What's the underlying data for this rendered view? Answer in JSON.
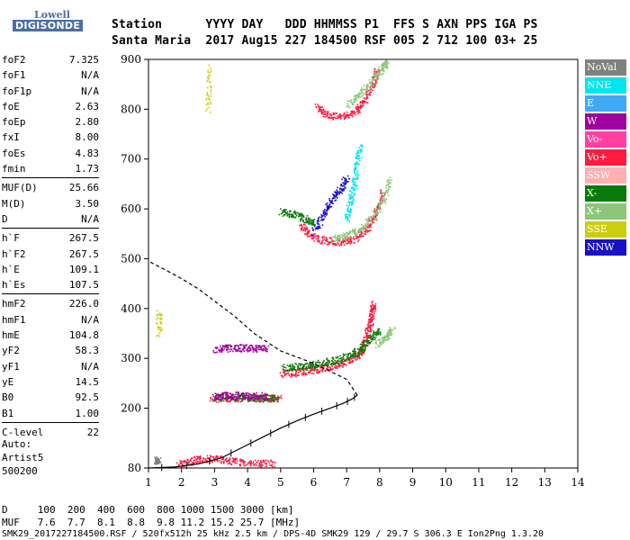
{
  "logo": {
    "line1": "Lowell",
    "line2": "DIGISONDE"
  },
  "header": {
    "line1": "Station      YYYY DAY   DDD HHMMSS P1  FFS S AXN PPS IGA PS",
    "line2": "Santa Maria  2017 Aug15 227 184500 RSF 005 2 712 100 03+ 25"
  },
  "params": [
    [
      [
        "foF2",
        "7.325"
      ],
      [
        "foF1",
        "N/A"
      ],
      [
        "foF1p",
        "N/A"
      ],
      [
        "foE",
        "2.63"
      ],
      [
        "foEp",
        "2.80"
      ],
      [
        "fxI",
        "8.00"
      ],
      [
        "foEs",
        "4.83"
      ],
      [
        "fmin",
        "1.73"
      ]
    ],
    [
      [
        "MUF(D)",
        "25.66"
      ],
      [
        "M(D)",
        "3.50"
      ],
      [
        "D",
        "N/A"
      ]
    ],
    [
      [
        "h`F",
        "267.5"
      ],
      [
        "h`F2",
        "267.5"
      ],
      [
        "h`E",
        "109.1"
      ],
      [
        "h`Es",
        "107.5"
      ]
    ],
    [
      [
        "hmF2",
        "226.0"
      ],
      [
        "hmF1",
        "N/A"
      ],
      [
        "hmE",
        "104.8"
      ],
      [
        "yF2",
        "58.3"
      ],
      [
        "yF1",
        "N/A"
      ],
      [
        "yE",
        "14.5"
      ],
      [
        "B0",
        "92.5"
      ],
      [
        "B1",
        "1.00"
      ]
    ],
    [
      [
        "C-level",
        "22"
      ]
    ]
  ],
  "auto": {
    "label": "Auto:",
    "name": "Artist5",
    "code": "500200"
  },
  "legend": [
    {
      "label": "NoVal",
      "color": "#808080"
    },
    {
      "label": "NNE",
      "color": "#00e5ee"
    },
    {
      "label": "E",
      "color": "#3fa9f5"
    },
    {
      "label": "W",
      "color": "#a0009f"
    },
    {
      "label": "Vo-",
      "color": "#ff40a0"
    },
    {
      "label": "Vo+",
      "color": "#ff1a40"
    },
    {
      "label": "SSW",
      "color": "#ffb0b0"
    },
    {
      "label": "X-",
      "color": "#0a7a0a"
    },
    {
      "label": "X+",
      "color": "#8cc67a"
    },
    {
      "label": "SSE",
      "color": "#cccc10"
    },
    {
      "label": "NNW",
      "color": "#1a10c8"
    }
  ],
  "footer": {
    "line1": "D     100  200  400  600  800 1000 1500 3000 [km]",
    "line2": "MUF   7.6  7.7  8.1  8.8  9.8 11.2 15.2 25.7 [MHz]",
    "line3": "SMK29_2017227184500.RSF / 520fx512h 25 kHz 2.5 km / DPS-4D SMK29 129 / 29.7 S 306.3 E Ion2Png 1.3.20"
  },
  "chart_data": {
    "type": "scatter",
    "xlim": [
      1,
      14
    ],
    "ylim": [
      80,
      900
    ],
    "xticks": [
      "1",
      "2",
      "3",
      "4",
      "5",
      "6",
      "7",
      "8",
      "9",
      "10",
      "11",
      "12",
      "13",
      "14"
    ],
    "yticks": [
      "80",
      "200",
      "300",
      "400",
      "500",
      "600",
      "700",
      "800",
      "900"
    ],
    "series": [
      {
        "name": "Vo+",
        "traces": [
          {
            "x": [
              1.9,
              2.3,
              2.7,
              3.2,
              3.7,
              4.3,
              4.8
            ],
            "y": [
              88,
              95,
              100,
              98,
              93,
              90,
              90
            ]
          },
          {
            "x": [
              5.0,
              5.4,
              5.8,
              6.2,
              6.6,
              7.0,
              7.3,
              7.5,
              7.6,
              7.7,
              7.75,
              7.8
            ],
            "y": [
              270,
              272,
              276,
              280,
              286,
              295,
              305,
              322,
              345,
              370,
              392,
              410
            ]
          },
          {
            "x": [
              2.9,
              3.4,
              4.0,
              4.6,
              5.0
            ],
            "y": [
              220,
              221,
              222,
              221,
              220
            ]
          },
          {
            "x": [
              5.6,
              5.9,
              6.3,
              6.8,
              7.2,
              7.6,
              7.9,
              8.1
            ],
            "y": [
              565,
              548,
              537,
              535,
              540,
              560,
              595,
              635
            ]
          },
          {
            "x": [
              6.1,
              6.4,
              6.8,
              7.2,
              7.5,
              7.8,
              7.9
            ],
            "y": [
              805,
              790,
              785,
              795,
              815,
              850,
              880
            ]
          }
        ]
      },
      {
        "name": "X-",
        "traces": [
          {
            "x": [
              5.1,
              5.5,
              5.9,
              6.3,
              6.7,
              7.1,
              7.4,
              7.7,
              8.0
            ],
            "y": [
              282,
              284,
              287,
              292,
              298,
              306,
              318,
              340,
              360
            ]
          },
          {
            "x": [
              5.0,
              5.4,
              5.8,
              6.0
            ],
            "y": [
              595,
              590,
              580,
              572
            ]
          },
          {
            "x": [
              3.0,
              3.5,
              4.0,
              4.5,
              4.9
            ],
            "y": [
              222,
              223,
              222,
              221,
              220
            ]
          }
        ]
      },
      {
        "name": "X+",
        "traces": [
          {
            "x": [
              6.6,
              7.0,
              7.4,
              7.8,
              8.1,
              8.3
            ],
            "y": [
              540,
              548,
              560,
              585,
              620,
              660
            ]
          },
          {
            "x": [
              7.0,
              7.4,
              7.8,
              8.1,
              8.2
            ],
            "y": [
              810,
              830,
              860,
              885,
              895
            ]
          },
          {
            "x": [
              7.9,
              8.2,
              8.4
            ],
            "y": [
              330,
              345,
              360
            ]
          }
        ]
      },
      {
        "name": "NNW",
        "traces": [
          {
            "x": [
              6.0,
              6.3,
              6.5,
              6.8,
              7.0
            ],
            "y": [
              555,
              590,
              615,
              640,
              665
            ]
          }
        ]
      },
      {
        "name": "NNE",
        "traces": [
          {
            "x": [
              7.0,
              7.1,
              7.2,
              7.3,
              7.4
            ],
            "y": [
              580,
              615,
              650,
              690,
              730
            ]
          }
        ]
      },
      {
        "name": "W",
        "traces": [
          {
            "x": [
              3.0,
              3.4,
              3.8,
              4.2,
              4.6
            ],
            "y": [
              320,
              321,
              322,
              321,
              320
            ]
          },
          {
            "x": [
              3.0,
              3.4,
              3.8,
              4.2,
              4.6
            ],
            "y": [
              225,
              226,
              226,
              225,
              225
            ]
          }
        ]
      },
      {
        "name": "SSE",
        "traces": [
          {
            "x": [
              2.8,
              2.8
            ],
            "y": [
              800,
              890
            ]
          },
          {
            "x": [
              1.3,
              1.3
            ],
            "y": [
              350,
              400
            ]
          }
        ]
      },
      {
        "name": "NoVal",
        "traces": [
          {
            "x": [
              1.2,
              1.3
            ],
            "y": [
              95,
              97
            ]
          }
        ]
      }
    ],
    "profile_model": {
      "x": [
        1.0,
        1.8,
        2.5,
        3.2,
        3.8,
        4.4,
        5.0,
        5.5,
        6.0,
        6.5,
        6.9,
        7.15,
        7.325
      ],
      "y": [
        80,
        82,
        88,
        100,
        120,
        140,
        160,
        175,
        188,
        200,
        210,
        218,
        226
      ]
    },
    "profile_topside": {
      "x": [
        7.325,
        7.0,
        6.0,
        5.0,
        4.2,
        3.6,
        3.0,
        2.5,
        2.0,
        1.5,
        1.0
      ],
      "y": [
        226,
        258,
        290,
        315,
        350,
        385,
        415,
        440,
        460,
        478,
        495
      ]
    }
  }
}
